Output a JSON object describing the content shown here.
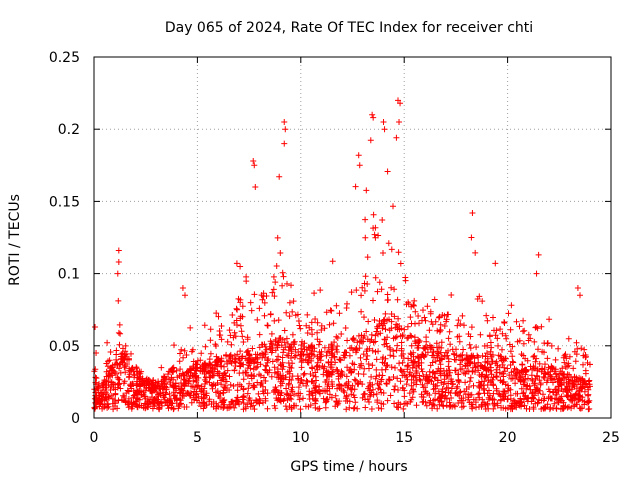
{
  "chart_data": {
    "type": "scatter",
    "title": "Day 065 of 2024, Rate Of TEC Index for receiver chti",
    "xlabel": "GPS time / hours",
    "ylabel": "ROTI / TECUs",
    "xlim": [
      0,
      25
    ],
    "ylim": [
      0,
      0.25
    ],
    "x_ticks": [
      0,
      5,
      10,
      15,
      20,
      25
    ],
    "x_tick_labels": [
      "0",
      "5",
      "10",
      "15",
      "20",
      "25"
    ],
    "y_ticks": [
      0,
      0.05,
      0.1,
      0.15,
      0.2,
      0.25
    ],
    "y_tick_labels": [
      "0",
      "0.05",
      "0.1",
      "0.15",
      "0.2",
      "0.25"
    ],
    "grid": true,
    "marker": "+",
    "marker_color": "#ff0000",
    "series": [
      {
        "name": "ROTI",
        "envelope_hours": [
          0,
          0.5,
          1,
          1.5,
          2,
          2.5,
          3,
          3.5,
          4,
          4.5,
          5,
          5.5,
          6,
          6.5,
          7,
          7.5,
          8,
          8.5,
          9,
          9.5,
          10,
          10.5,
          11,
          11.5,
          12,
          12.5,
          13,
          13.5,
          14,
          14.5,
          15,
          15.5,
          16,
          16.5,
          17,
          17.5,
          18,
          18.5,
          19,
          19.5,
          20,
          20.5,
          21,
          21.5,
          22,
          22.5,
          23,
          23.5,
          24
        ],
        "envelope_typical": [
          0.015,
          0.02,
          0.03,
          0.04,
          0.025,
          0.02,
          0.018,
          0.02,
          0.02,
          0.025,
          0.03,
          0.03,
          0.032,
          0.035,
          0.035,
          0.038,
          0.04,
          0.042,
          0.045,
          0.045,
          0.042,
          0.04,
          0.04,
          0.04,
          0.042,
          0.045,
          0.048,
          0.052,
          0.06,
          0.06,
          0.05,
          0.045,
          0.042,
          0.04,
          0.038,
          0.035,
          0.035,
          0.035,
          0.035,
          0.035,
          0.033,
          0.03,
          0.03,
          0.03,
          0.028,
          0.025,
          0.022,
          0.02,
          0.018
        ],
        "envelope_max": [
          0.063,
          0.04,
          0.116,
          0.065,
          0.045,
          0.035,
          0.03,
          0.04,
          0.058,
          0.09,
          0.06,
          0.072,
          0.08,
          0.1,
          0.11,
          0.178,
          0.12,
          0.17,
          0.205,
          0.12,
          0.1,
          0.1,
          0.095,
          0.11,
          0.12,
          0.175,
          0.182,
          0.21,
          0.205,
          0.22,
          0.16,
          0.11,
          0.108,
          0.1,
          0.1,
          0.1,
          0.1,
          0.142,
          0.1,
          0.11,
          0.085,
          0.1,
          0.08,
          0.113,
          0.07,
          0.07,
          0.06,
          0.09,
          0.06
        ],
        "highlight_points": [
          {
            "x": 0.05,
            "y": 0.063
          },
          {
            "x": 0.1,
            "y": 0.045
          },
          {
            "x": 1.2,
            "y": 0.116
          },
          {
            "x": 1.2,
            "y": 0.108
          },
          {
            "x": 1.15,
            "y": 0.1
          },
          {
            "x": 4.3,
            "y": 0.09
          },
          {
            "x": 4.4,
            "y": 0.085
          },
          {
            "x": 7.7,
            "y": 0.178
          },
          {
            "x": 7.75,
            "y": 0.175
          },
          {
            "x": 7.8,
            "y": 0.16
          },
          {
            "x": 9.2,
            "y": 0.205
          },
          {
            "x": 9.25,
            "y": 0.2
          },
          {
            "x": 9.2,
            "y": 0.19
          },
          {
            "x": 12.8,
            "y": 0.182
          },
          {
            "x": 12.85,
            "y": 0.175
          },
          {
            "x": 13.45,
            "y": 0.21
          },
          {
            "x": 13.5,
            "y": 0.208
          },
          {
            "x": 14.0,
            "y": 0.205
          },
          {
            "x": 14.05,
            "y": 0.2
          },
          {
            "x": 14.7,
            "y": 0.22
          },
          {
            "x": 14.8,
            "y": 0.218
          },
          {
            "x": 14.75,
            "y": 0.205
          },
          {
            "x": 18.3,
            "y": 0.142
          },
          {
            "x": 18.25,
            "y": 0.125
          },
          {
            "x": 21.5,
            "y": 0.113
          },
          {
            "x": 21.4,
            "y": 0.1
          },
          {
            "x": 23.4,
            "y": 0.09
          },
          {
            "x": 23.5,
            "y": 0.085
          }
        ],
        "sample_count": 2600
      }
    ]
  }
}
